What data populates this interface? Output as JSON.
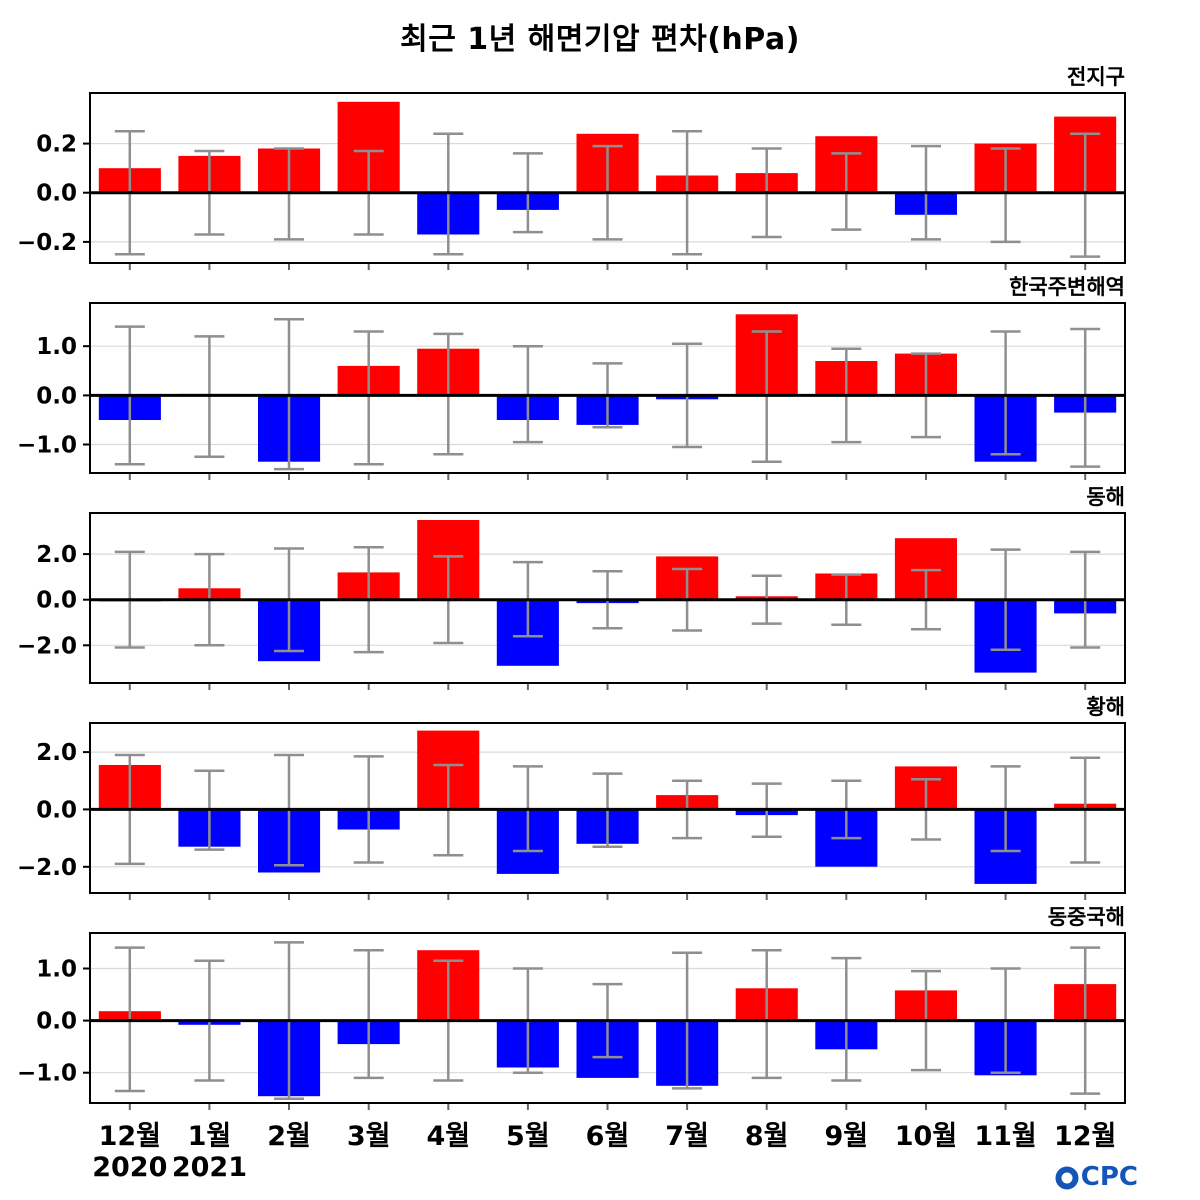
{
  "title": "최근 1년 해면기압 편차(hPa)",
  "logo": {
    "text": "CPC",
    "name": "OCPC",
    "color": "#1456b8"
  },
  "colors": {
    "positive": "#ff0000",
    "negative": "#0000ff",
    "error": "#8f8f8f",
    "grid": "#d9d9d9",
    "axis": "#000000",
    "tick": "#666666"
  },
  "x_axis": {
    "years": [
      {
        "label": "2020",
        "month_index": 0
      },
      {
        "label": "2021",
        "month_index": 1
      }
    ]
  },
  "chart_data": {
    "type": "bar",
    "title": "최근 1년 해면기압 편차(hPa)",
    "categories": [
      "12월",
      "1월",
      "2월",
      "3월",
      "4월",
      "5월",
      "6월",
      "7월",
      "8월",
      "9월",
      "10월",
      "11월",
      "12월"
    ],
    "panels": [
      {
        "region": "전지구",
        "ylim": [
          -0.29,
          0.41
        ],
        "yticks": [
          -0.2,
          0.0,
          0.2
        ],
        "values": [
          0.1,
          0.15,
          0.18,
          0.37,
          -0.17,
          -0.07,
          0.24,
          0.07,
          0.08,
          0.23,
          -0.09,
          0.2,
          0.31
        ],
        "err_high": [
          0.25,
          0.17,
          0.18,
          0.17,
          0.24,
          0.16,
          0.19,
          0.25,
          0.18,
          0.16,
          0.19,
          0.18,
          0.24
        ],
        "err_low": [
          -0.25,
          -0.17,
          -0.19,
          -0.17,
          -0.25,
          -0.16,
          -0.19,
          -0.25,
          -0.18,
          -0.15,
          -0.19,
          -0.2,
          -0.26
        ]
      },
      {
        "region": "한국주변해역",
        "ylim": [
          -1.6,
          1.9
        ],
        "yticks": [
          -1.0,
          0.0,
          1.0
        ],
        "values": [
          -0.5,
          0.03,
          -1.35,
          0.6,
          0.95,
          -0.5,
          -0.6,
          -0.08,
          1.65,
          0.7,
          0.85,
          -1.35,
          -0.35
        ],
        "err_high": [
          1.4,
          1.2,
          1.55,
          1.3,
          1.25,
          1.0,
          0.65,
          1.05,
          1.3,
          0.95,
          0.85,
          1.3,
          1.35
        ],
        "err_low": [
          -1.4,
          -1.25,
          -1.5,
          -1.4,
          -1.2,
          -0.95,
          -0.65,
          -1.05,
          -1.35,
          -0.95,
          -0.85,
          -1.2,
          -1.45
        ]
      },
      {
        "region": "동해",
        "ylim": [
          -3.7,
          3.85
        ],
        "yticks": [
          -2.0,
          0.0,
          2.0
        ],
        "values": [
          -0.07,
          0.5,
          -2.7,
          1.2,
          3.5,
          -2.9,
          -0.15,
          1.9,
          0.15,
          1.15,
          2.7,
          -3.2,
          -0.6
        ],
        "err_high": [
          2.1,
          2.0,
          2.25,
          2.3,
          1.9,
          1.65,
          1.25,
          1.35,
          1.05,
          1.1,
          1.3,
          2.2,
          2.1
        ],
        "err_low": [
          -2.1,
          -2.0,
          -2.25,
          -2.3,
          -1.9,
          -1.6,
          -1.25,
          -1.35,
          -1.05,
          -1.1,
          -1.3,
          -2.2,
          -2.1
        ]
      },
      {
        "region": "황해",
        "ylim": [
          -2.95,
          3.05
        ],
        "yticks": [
          -2.0,
          0.0,
          2.0
        ],
        "values": [
          1.55,
          -1.3,
          -2.2,
          -0.7,
          2.75,
          -2.25,
          -1.2,
          0.5,
          -0.2,
          -2.0,
          1.5,
          -2.6,
          0.2
        ],
        "err_high": [
          1.9,
          1.35,
          1.9,
          1.85,
          1.55,
          1.5,
          1.25,
          1.0,
          0.9,
          1.0,
          1.05,
          1.5,
          1.8
        ],
        "err_low": [
          -1.9,
          -1.4,
          -1.95,
          -1.85,
          -1.6,
          -1.45,
          -1.3,
          -1.0,
          -0.95,
          -1.0,
          -1.05,
          -1.45,
          -1.85
        ]
      },
      {
        "region": "동중국해",
        "ylim": [
          -1.6,
          1.7
        ],
        "yticks": [
          -1.0,
          0.0,
          1.0
        ],
        "values": [
          0.18,
          -0.08,
          -1.45,
          -0.45,
          1.35,
          -0.9,
          -1.1,
          -1.25,
          0.62,
          -0.55,
          0.58,
          -1.05,
          0.7
        ],
        "err_high": [
          1.4,
          1.15,
          1.5,
          1.35,
          1.15,
          1.0,
          0.7,
          1.3,
          1.35,
          1.2,
          0.95,
          1.0,
          1.4
        ],
        "err_low": [
          -1.35,
          -1.15,
          -1.5,
          -1.1,
          -1.15,
          -1.0,
          -0.7,
          -1.3,
          -1.1,
          -1.15,
          -0.95,
          -1.0,
          -1.4
        ]
      }
    ]
  }
}
